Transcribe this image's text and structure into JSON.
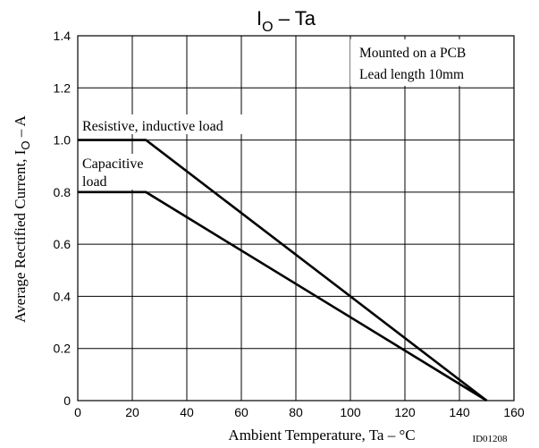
{
  "chart_data": {
    "type": "line",
    "title_main": "I",
    "title_sub": "O",
    "title_rest": " – Ta",
    "xlabel": "Ambient Temperature,  Ta  –  °C",
    "ylabel_main": "Average Rectified Current,  I",
    "ylabel_sub": "O",
    "ylabel_rest": "  –  A",
    "xlim": [
      0,
      160
    ],
    "ylim": [
      0,
      1.4
    ],
    "x_ticks": [
      0,
      20,
      40,
      60,
      80,
      100,
      120,
      140,
      160
    ],
    "x_tick_labels": [
      "0",
      "20",
      "40",
      "60",
      "80",
      "100",
      "120",
      "140",
      "160"
    ],
    "y_ticks": [
      0,
      0.2,
      0.4,
      0.6,
      0.8,
      1.0,
      1.2,
      1.4
    ],
    "y_tick_labels": [
      "0",
      "0.2",
      "0.4",
      "0.6",
      "0.8",
      "1.0",
      "1.2",
      "1.4"
    ],
    "grid": true,
    "series": [
      {
        "name": "Resistive, inductive load",
        "x": [
          0,
          25,
          150
        ],
        "y": [
          1.0,
          1.0,
          0
        ]
      },
      {
        "name": "Capacitive load",
        "x": [
          0,
          25,
          150
        ],
        "y": [
          0.8,
          0.8,
          0
        ]
      }
    ],
    "annotations": {
      "mount_line1": "Mounted on a PCB",
      "mount_line2": "Lead length 10mm",
      "resistive": "Resistive, inductive load",
      "capacitive_line1": "Capacitive",
      "capacitive_line2": "load"
    },
    "figure_id": "ID01208"
  }
}
